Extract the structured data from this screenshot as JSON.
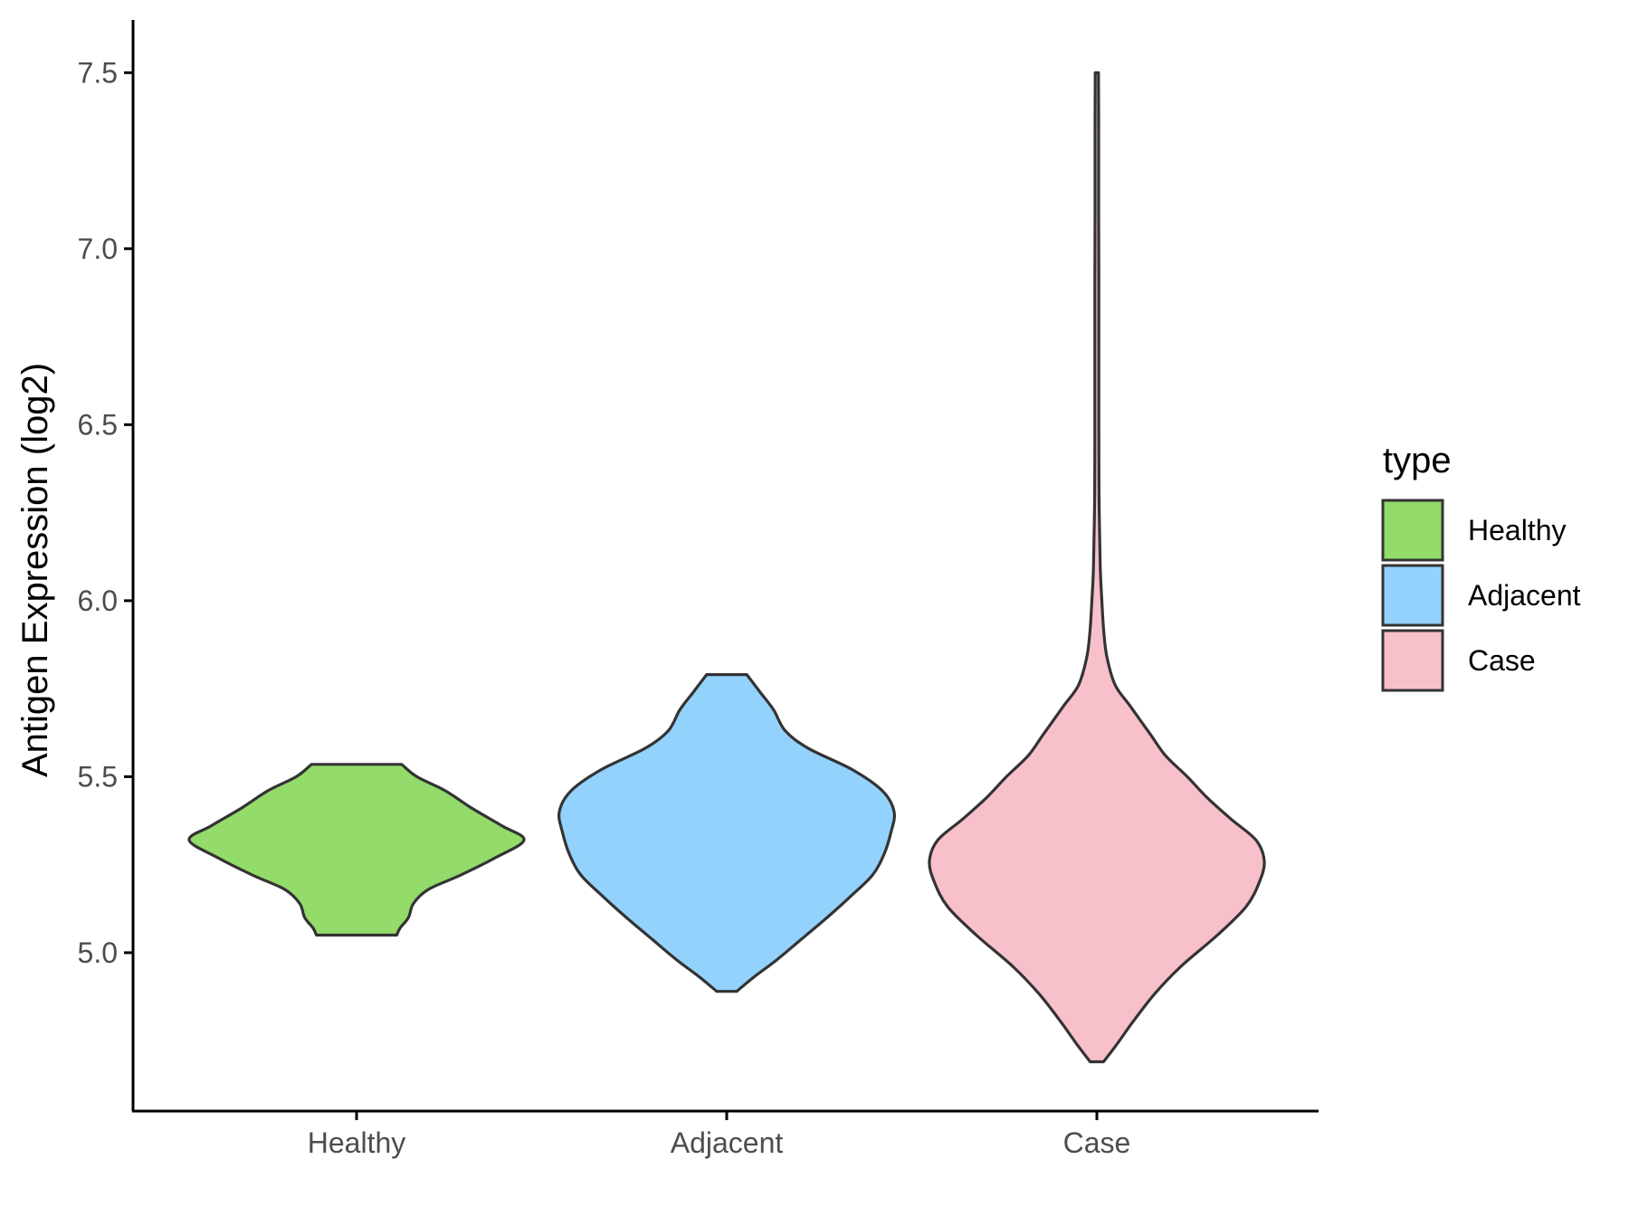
{
  "chart_data": {
    "type": "violin",
    "title": "",
    "xlabel": "",
    "ylabel": "Antigen Expression (log2)",
    "ylim": [
      4.55,
      7.65
    ],
    "y_ticks": [
      5.0,
      5.5,
      6.0,
      6.5,
      7.0,
      7.5
    ],
    "y_tick_labels": [
      "5.0",
      "5.5",
      "6.0",
      "6.5",
      "7.0",
      "7.5"
    ],
    "categories": [
      "Healthy",
      "Adjacent",
      "Case"
    ],
    "legend": {
      "title": "type",
      "position": "right",
      "entries": [
        {
          "label": "Healthy",
          "color": "#93DB6A"
        },
        {
          "label": "Adjacent",
          "color": "#93D2FD"
        },
        {
          "label": "Case",
          "color": "#F8C0CB"
        }
      ]
    },
    "series": [
      {
        "category": "Healthy",
        "color": "#93DB6A",
        "min": 5.05,
        "max": 5.535,
        "density": [
          [
            5.05,
            0.24
          ],
          [
            5.07,
            0.26
          ],
          [
            5.1,
            0.31
          ],
          [
            5.14,
            0.34
          ],
          [
            5.18,
            0.43
          ],
          [
            5.22,
            0.62
          ],
          [
            5.27,
            0.83
          ],
          [
            5.32,
            1.0
          ],
          [
            5.36,
            0.87
          ],
          [
            5.41,
            0.69
          ],
          [
            5.46,
            0.53
          ],
          [
            5.5,
            0.36
          ],
          [
            5.535,
            0.27
          ]
        ]
      },
      {
        "category": "Adjacent",
        "color": "#93D2FD",
        "min": 4.89,
        "max": 5.79,
        "density": [
          [
            4.89,
            0.06
          ],
          [
            4.93,
            0.16
          ],
          [
            4.98,
            0.3
          ],
          [
            5.04,
            0.45
          ],
          [
            5.1,
            0.6
          ],
          [
            5.16,
            0.74
          ],
          [
            5.22,
            0.87
          ],
          [
            5.28,
            0.94
          ],
          [
            5.34,
            0.98
          ],
          [
            5.4,
            1.0
          ],
          [
            5.46,
            0.93
          ],
          [
            5.52,
            0.75
          ],
          [
            5.58,
            0.49
          ],
          [
            5.63,
            0.35
          ],
          [
            5.69,
            0.28
          ],
          [
            5.74,
            0.2
          ],
          [
            5.79,
            0.12
          ]
        ]
      },
      {
        "category": "Case",
        "color": "#F8C0CB",
        "min": 4.69,
        "max": 7.5,
        "density": [
          [
            4.69,
            0.04
          ],
          [
            4.74,
            0.12
          ],
          [
            4.8,
            0.21
          ],
          [
            4.88,
            0.34
          ],
          [
            4.96,
            0.5
          ],
          [
            5.05,
            0.72
          ],
          [
            5.13,
            0.89
          ],
          [
            5.2,
            0.97
          ],
          [
            5.26,
            1.0
          ],
          [
            5.32,
            0.95
          ],
          [
            5.38,
            0.8
          ],
          [
            5.44,
            0.66
          ],
          [
            5.5,
            0.54
          ],
          [
            5.56,
            0.41
          ],
          [
            5.62,
            0.32
          ],
          [
            5.7,
            0.2
          ],
          [
            5.76,
            0.11
          ],
          [
            5.84,
            0.06
          ],
          [
            5.92,
            0.04
          ],
          [
            6.0,
            0.03
          ],
          [
            6.1,
            0.02
          ],
          [
            6.3,
            0.013
          ],
          [
            6.5,
            0.012
          ],
          [
            6.7,
            0.012
          ],
          [
            6.9,
            0.012
          ],
          [
            7.1,
            0.011
          ],
          [
            7.3,
            0.011
          ],
          [
            7.5,
            0.01
          ]
        ]
      }
    ]
  }
}
